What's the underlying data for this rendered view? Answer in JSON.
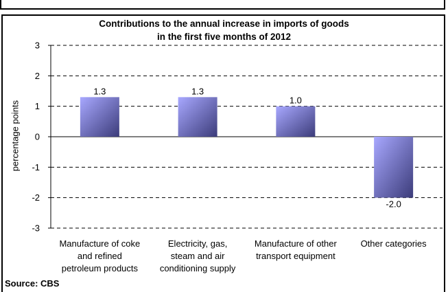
{
  "chart_data": {
    "type": "bar",
    "title": "Contributions to the annual increase in imports of goods\nin the first five months of 2012",
    "ylabel": "percentage points",
    "xlabel": "",
    "ylim": [
      -3,
      3
    ],
    "yticks": [
      "3",
      "2",
      "1",
      "0",
      "-1",
      "-2",
      "-3"
    ],
    "categories": [
      "Manufacture of coke\nand refined\npetroleum products",
      "Electricity, gas,\nsteam and air\nconditioning supply",
      "Manufacture of other\ntransport equipment",
      "Other categories"
    ],
    "values": [
      1.3,
      1.3,
      1.0,
      -2.0
    ],
    "data_labels": [
      "1.3",
      "1.3",
      "1.0",
      "-2.0"
    ],
    "grid": "dashed horizontal",
    "bar_color_light": "#a8a8ff",
    "bar_color_dark": "#3c3c7a"
  },
  "source": "Source: CBS"
}
